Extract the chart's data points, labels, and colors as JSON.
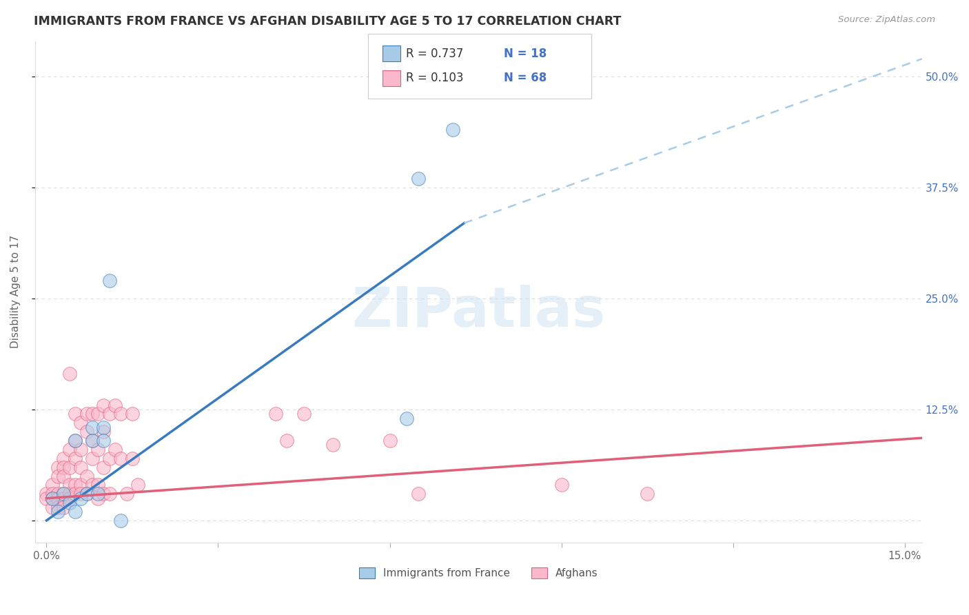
{
  "title": "IMMIGRANTS FROM FRANCE VS AFGHAN DISABILITY AGE 5 TO 17 CORRELATION CHART",
  "source": "Source: ZipAtlas.com",
  "ylabel": "Disability Age 5 to 17",
  "xlim": [
    -0.002,
    0.153
  ],
  "ylim": [
    -0.025,
    0.54
  ],
  "xticks": [
    0.0,
    0.03,
    0.06,
    0.09,
    0.12,
    0.15
  ],
  "xtick_labels": [
    "0.0%",
    "",
    "",
    "",
    "",
    "15.0%"
  ],
  "ytick_labels_right": [
    "50.0%",
    "37.5%",
    "25.0%",
    "12.5%",
    ""
  ],
  "ytick_vals_right": [
    0.5,
    0.375,
    0.25,
    0.125,
    0.0
  ],
  "watermark": "ZIPatlas",
  "legend_r1": "R = 0.737",
  "legend_n1": "N = 18",
  "legend_r2": "R = 0.103",
  "legend_n2": "N = 68",
  "legend_label1": "Immigrants from France",
  "legend_label2": "Afghans",
  "blue_color": "#a8cce8",
  "pink_color": "#f9b8cb",
  "blue_line_color": "#3a7bbf",
  "pink_line_color": "#e0607a",
  "dashed_line_color": "#a8cce8",
  "blue_scatter": [
    [
      0.001,
      0.025
    ],
    [
      0.002,
      0.01
    ],
    [
      0.003,
      0.03
    ],
    [
      0.004,
      0.02
    ],
    [
      0.005,
      0.01
    ],
    [
      0.005,
      0.09
    ],
    [
      0.006,
      0.025
    ],
    [
      0.007,
      0.03
    ],
    [
      0.008,
      0.09
    ],
    [
      0.008,
      0.105
    ],
    [
      0.009,
      0.03
    ],
    [
      0.01,
      0.105
    ],
    [
      0.01,
      0.09
    ],
    [
      0.011,
      0.27
    ],
    [
      0.013,
      0.0
    ],
    [
      0.063,
      0.115
    ],
    [
      0.065,
      0.385
    ],
    [
      0.071,
      0.44
    ]
  ],
  "pink_scatter": [
    [
      0.0,
      0.03
    ],
    [
      0.0,
      0.025
    ],
    [
      0.001,
      0.04
    ],
    [
      0.001,
      0.03
    ],
    [
      0.001,
      0.025
    ],
    [
      0.001,
      0.015
    ],
    [
      0.002,
      0.06
    ],
    [
      0.002,
      0.05
    ],
    [
      0.002,
      0.03
    ],
    [
      0.002,
      0.025
    ],
    [
      0.002,
      0.015
    ],
    [
      0.003,
      0.07
    ],
    [
      0.003,
      0.06
    ],
    [
      0.003,
      0.05
    ],
    [
      0.003,
      0.03
    ],
    [
      0.003,
      0.025
    ],
    [
      0.003,
      0.015
    ],
    [
      0.004,
      0.165
    ],
    [
      0.004,
      0.08
    ],
    [
      0.004,
      0.06
    ],
    [
      0.004,
      0.04
    ],
    [
      0.004,
      0.03
    ],
    [
      0.004,
      0.025
    ],
    [
      0.005,
      0.12
    ],
    [
      0.005,
      0.09
    ],
    [
      0.005,
      0.07
    ],
    [
      0.005,
      0.04
    ],
    [
      0.005,
      0.03
    ],
    [
      0.006,
      0.11
    ],
    [
      0.006,
      0.08
    ],
    [
      0.006,
      0.06
    ],
    [
      0.006,
      0.04
    ],
    [
      0.006,
      0.03
    ],
    [
      0.007,
      0.12
    ],
    [
      0.007,
      0.1
    ],
    [
      0.007,
      0.05
    ],
    [
      0.007,
      0.03
    ],
    [
      0.008,
      0.12
    ],
    [
      0.008,
      0.09
    ],
    [
      0.008,
      0.07
    ],
    [
      0.008,
      0.04
    ],
    [
      0.009,
      0.12
    ],
    [
      0.009,
      0.08
    ],
    [
      0.009,
      0.04
    ],
    [
      0.009,
      0.025
    ],
    [
      0.01,
      0.13
    ],
    [
      0.01,
      0.1
    ],
    [
      0.01,
      0.06
    ],
    [
      0.01,
      0.03
    ],
    [
      0.011,
      0.12
    ],
    [
      0.011,
      0.07
    ],
    [
      0.011,
      0.03
    ],
    [
      0.012,
      0.13
    ],
    [
      0.012,
      0.08
    ],
    [
      0.013,
      0.12
    ],
    [
      0.013,
      0.07
    ],
    [
      0.014,
      0.03
    ],
    [
      0.015,
      0.12
    ],
    [
      0.015,
      0.07
    ],
    [
      0.016,
      0.04
    ],
    [
      0.04,
      0.12
    ],
    [
      0.042,
      0.09
    ],
    [
      0.045,
      0.12
    ],
    [
      0.05,
      0.085
    ],
    [
      0.06,
      0.09
    ],
    [
      0.065,
      0.03
    ],
    [
      0.09,
      0.04
    ],
    [
      0.105,
      0.03
    ]
  ],
  "blue_trendline_solid": [
    [
      0.0,
      0.0
    ],
    [
      0.073,
      0.335
    ]
  ],
  "blue_trendline_dashed": [
    [
      0.073,
      0.335
    ],
    [
      0.153,
      0.52
    ]
  ],
  "pink_trendline": [
    [
      0.0,
      0.025
    ],
    [
      0.153,
      0.093
    ]
  ]
}
